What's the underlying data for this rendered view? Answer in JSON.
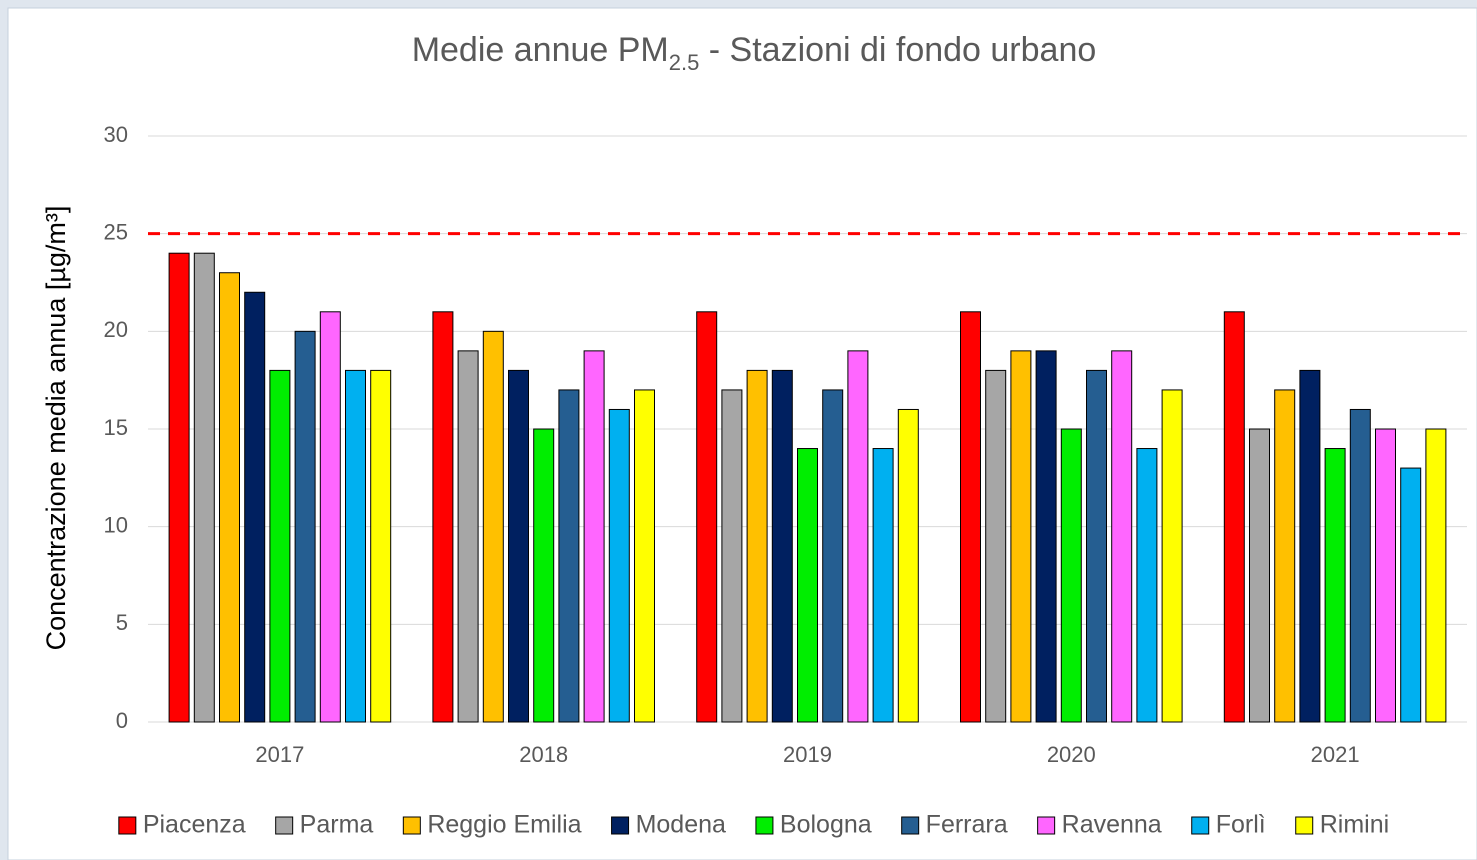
{
  "chart_data": {
    "type": "bar",
    "title": {
      "text": "Medie annue PM",
      "subscript": "2.5",
      "rest": " - Stazioni di fondo urbano"
    },
    "y_label": "Concentrazione media annua [µg/m³]",
    "categories": [
      "2017",
      "2018",
      "2019",
      "2020",
      "2021"
    ],
    "series": [
      {
        "name": "Piacenza",
        "color": "#ff0000",
        "values": [
          24,
          21,
          21,
          21,
          21
        ]
      },
      {
        "name": "Parma",
        "color": "#a6a6a6",
        "values": [
          24,
          19,
          17,
          18,
          15
        ]
      },
      {
        "name": "Reggio Emilia",
        "color": "#ffc000",
        "values": [
          23,
          20,
          18,
          19,
          17
        ]
      },
      {
        "name": "Modena",
        "color": "#002060",
        "values": [
          22,
          18,
          18,
          19,
          18
        ]
      },
      {
        "name": "Bologna",
        "color": "#00ee00",
        "values": [
          18,
          15,
          14,
          15,
          14
        ]
      },
      {
        "name": "Ferrara",
        "color": "#255e91",
        "values": [
          20,
          17,
          17,
          18,
          16
        ]
      },
      {
        "name": "Ravenna",
        "color": "#ff66ff",
        "values": [
          21,
          19,
          19,
          19,
          15
        ]
      },
      {
        "name": "Forlì",
        "color": "#00b0f0",
        "values": [
          18,
          16,
          14,
          14,
          13
        ]
      },
      {
        "name": "Rimini",
        "color": "#ffff00",
        "values": [
          18,
          17,
          16,
          17,
          15
        ]
      }
    ],
    "ylim": [
      0,
      30
    ],
    "yticks": [
      0,
      5,
      10,
      15,
      20,
      25,
      30
    ],
    "grid": true,
    "reference_line": {
      "value": 25,
      "color": "#ff0000"
    },
    "legend": "bottom"
  }
}
